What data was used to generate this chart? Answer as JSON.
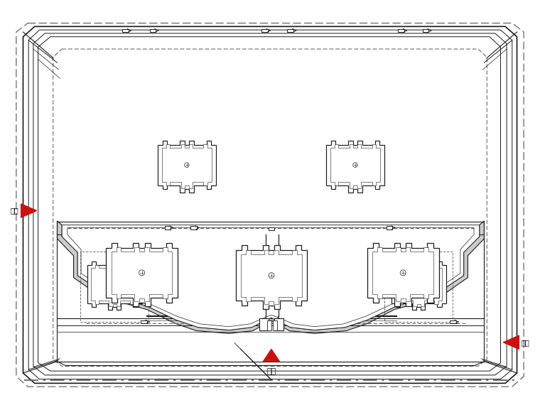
{
  "bg_color": "#ffffff",
  "line_color": "#1a1a1a",
  "dashed_color": "#555555",
  "red_color": "#cc1111",
  "title_bottom": "大门",
  "label_left": "大门",
  "label_right": "大门",
  "figsize": [
    7.6,
    5.7
  ],
  "dpi": 100
}
